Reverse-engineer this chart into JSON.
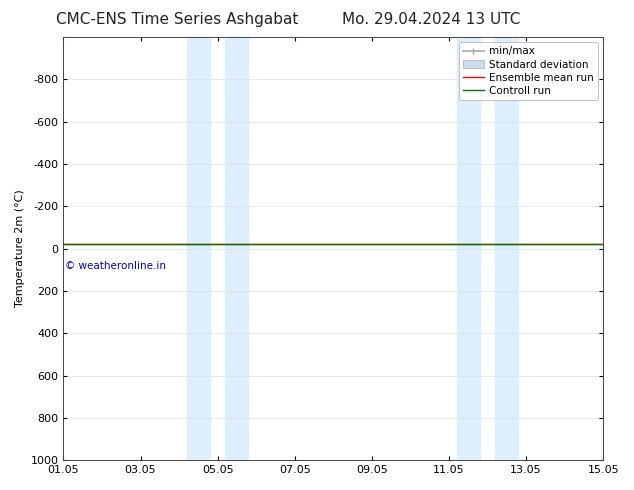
{
  "title_left": "CMC-ENS Time Series Ashgabat",
  "title_right": "Mo. 29.04.2024 13 UTC",
  "ylabel": "Temperature 2m (°C)",
  "ylim_top": -1000,
  "ylim_bottom": 1000,
  "yticks": [
    -800,
    -600,
    -400,
    -200,
    0,
    200,
    400,
    600,
    800,
    1000
  ],
  "xlim_min": 0,
  "xlim_max": 14,
  "xtick_labels": [
    "01.05",
    "03.05",
    "05.05",
    "07.05",
    "09.05",
    "11.05",
    "13.05",
    "15.05"
  ],
  "xtick_positions": [
    0,
    2,
    4,
    6,
    8,
    10,
    12,
    14
  ],
  "blue_bands": [
    [
      3.2,
      3.8
    ],
    [
      4.2,
      4.8
    ],
    [
      10.2,
      10.8
    ],
    [
      11.2,
      11.8
    ]
  ],
  "blue_band_color": "#ddeeff",
  "control_run_y": -20,
  "control_run_color": "#007700",
  "ensemble_mean_color": "#ff0000",
  "minmax_color": "#aaaaaa",
  "std_color": "#ccddee",
  "std_edge_color": "#aaaaaa",
  "copyright_text": "© weatheronline.in",
  "copyright_color": "#0000cc",
  "bg_color": "#ffffff",
  "grid_color": "#dddddd",
  "title_fontsize": 11,
  "axis_fontsize": 8,
  "tick_fontsize": 8,
  "legend_fontsize": 7.5
}
